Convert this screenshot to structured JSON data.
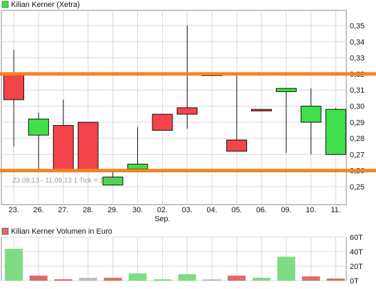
{
  "colors": {
    "up": "#3fe04a",
    "down": "#f2444a",
    "neutral": "#bdbdbd",
    "up_volume": "#7fdc85",
    "down_volume": "#dd6a6a",
    "support_line": "#f58220",
    "grid": "#d8d8d8",
    "axis_text": "#111111",
    "note_text": "#9a9a9a"
  },
  "chart_data": [
    {
      "type": "candlestick",
      "title": "Kilian Kerner (Xetra)",
      "title_icon_color": "#3fe04a",
      "categories": [
        "23.",
        "26.",
        "27.",
        "28.",
        "29.",
        "30.",
        "02.",
        "03.",
        "04.",
        "05.",
        "06.",
        "09.",
        "10.",
        "11."
      ],
      "month_label": "Sep.",
      "month_label_index": 6,
      "ylim": [
        0.24,
        0.36
      ],
      "yticks": [
        {
          "v": 0.25,
          "label": "0,25"
        },
        {
          "v": 0.26,
          "label": "0,26"
        },
        {
          "v": 0.27,
          "label": "0,27"
        },
        {
          "v": 0.28,
          "label": "0,28"
        },
        {
          "v": 0.29,
          "label": "0,29"
        },
        {
          "v": 0.3,
          "label": "0,30"
        },
        {
          "v": 0.31,
          "label": "0,31"
        },
        {
          "v": 0.32,
          "label": "0,32"
        },
        {
          "v": 0.33,
          "label": "0,33"
        },
        {
          "v": 0.34,
          "label": "0,34"
        },
        {
          "v": 0.35,
          "label": "0,35"
        }
      ],
      "candles": [
        {
          "open": 0.32,
          "close": 0.304,
          "high": 0.335,
          "low": 0.275,
          "dir": "down"
        },
        {
          "open": 0.282,
          "close": 0.292,
          "high": 0.296,
          "low": 0.26,
          "dir": "up"
        },
        {
          "open": 0.288,
          "close": 0.26,
          "high": 0.304,
          "low": 0.26,
          "dir": "down"
        },
        {
          "open": 0.29,
          "close": 0.26,
          "high": 0.29,
          "low": 0.26,
          "dir": "down"
        },
        {
          "open": 0.251,
          "close": 0.256,
          "high": 0.26,
          "low": 0.251,
          "dir": "up"
        },
        {
          "open": 0.261,
          "close": 0.264,
          "high": 0.287,
          "low": 0.261,
          "dir": "up"
        },
        {
          "open": 0.295,
          "close": 0.285,
          "high": 0.295,
          "low": 0.285,
          "dir": "down"
        },
        {
          "open": 0.299,
          "close": 0.295,
          "high": 0.35,
          "low": 0.286,
          "dir": "down"
        },
        {
          "open": 0.319,
          "close": 0.319,
          "high": 0.319,
          "low": 0.319,
          "dir": "flat"
        },
        {
          "open": 0.279,
          "close": 0.272,
          "high": 0.319,
          "low": 0.272,
          "dir": "down"
        },
        {
          "open": 0.298,
          "close": 0.297,
          "high": 0.298,
          "low": 0.297,
          "dir": "down"
        },
        {
          "open": 0.309,
          "close": 0.311,
          "high": 0.311,
          "low": 0.271,
          "dir": "up"
        },
        {
          "open": 0.29,
          "close": 0.3,
          "high": 0.311,
          "low": 0.27,
          "dir": "up"
        },
        {
          "open": 0.27,
          "close": 0.298,
          "high": 0.299,
          "low": 0.27,
          "dir": "up"
        }
      ],
      "horizontal_lines": [
        0.32,
        0.26
      ],
      "note": "23.08.13 - 11.09.13   1 Tick = 1 Tag"
    },
    {
      "type": "bar",
      "title": "Kilian Kerner Volumen in Euro",
      "title_icon_color": "#dd6a6a",
      "categories": [
        "23.",
        "26.",
        "27.",
        "28.",
        "29.",
        "30.",
        "02.",
        "03.",
        "04.",
        "05.",
        "06.",
        "09.",
        "10.",
        "11."
      ],
      "values": [
        44000,
        7000,
        2000,
        4000,
        4000,
        10000,
        1000,
        9000,
        0,
        7000,
        4000,
        33000,
        6000,
        3000
      ],
      "bar_colors": [
        "up_volume",
        "down_volume",
        "down_volume",
        "neutral",
        "down_volume",
        "up_volume",
        "up_volume",
        "up_volume",
        "neutral",
        "down_volume",
        "up_volume",
        "up_volume",
        "down_volume",
        "down_volume"
      ],
      "ylim": [
        0,
        60000
      ],
      "yticks": [
        {
          "v": 0,
          "label": "0T"
        },
        {
          "v": 20000,
          "label": "20T"
        },
        {
          "v": 40000,
          "label": "40T"
        },
        {
          "v": 60000,
          "label": "60T"
        }
      ]
    }
  ]
}
